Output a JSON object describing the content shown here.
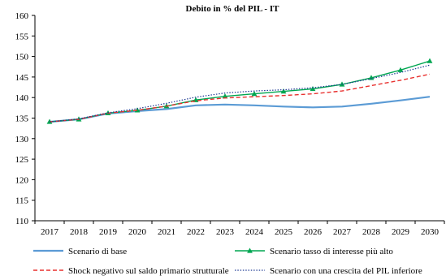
{
  "chart_data": {
    "type": "line",
    "title": "Debito in % del PIL  - IT",
    "x": [
      "2017",
      "2018",
      "2019",
      "2020",
      "2021",
      "2022",
      "2023",
      "2024",
      "2025",
      "2026",
      "2027",
      "2028",
      "2029",
      "2030"
    ],
    "ylim": [
      110,
      160
    ],
    "yticks": [
      110,
      115,
      120,
      125,
      130,
      135,
      140,
      145,
      150,
      155,
      160
    ],
    "grid": false,
    "legend_position": "bottom",
    "series": [
      {
        "name": "Scenario di base",
        "color": "#5b9bd5",
        "style": "solid",
        "values": [
          134.1,
          134.7,
          136.1,
          136.7,
          137.2,
          138.1,
          138.3,
          138.1,
          137.8,
          137.6,
          137.8,
          138.5,
          139.3,
          140.2
        ]
      },
      {
        "name": "Scenario tasso di interesse più alto",
        "color": "#00a651",
        "style": "solid-triangle",
        "values": [
          134.1,
          134.7,
          136.2,
          136.9,
          137.9,
          139.4,
          140.3,
          140.9,
          141.5,
          142.1,
          143.2,
          144.8,
          146.7,
          148.9
        ]
      },
      {
        "name": "Shock negativo sul saldo primario strutturale",
        "color": "#e8312f",
        "style": "dashed",
        "values": [
          134.1,
          134.7,
          136.2,
          136.9,
          137.9,
          139.2,
          139.9,
          140.2,
          140.5,
          140.9,
          141.6,
          142.9,
          144.2,
          145.7
        ]
      },
      {
        "name": "Scenario con una crescita del PIL inferiore",
        "color": "#1f3a93",
        "style": "dotted",
        "values": [
          134.1,
          134.8,
          136.3,
          137.3,
          138.6,
          140.1,
          141.1,
          141.6,
          141.9,
          142.4,
          143.2,
          144.6,
          146.1,
          147.9
        ]
      }
    ]
  }
}
